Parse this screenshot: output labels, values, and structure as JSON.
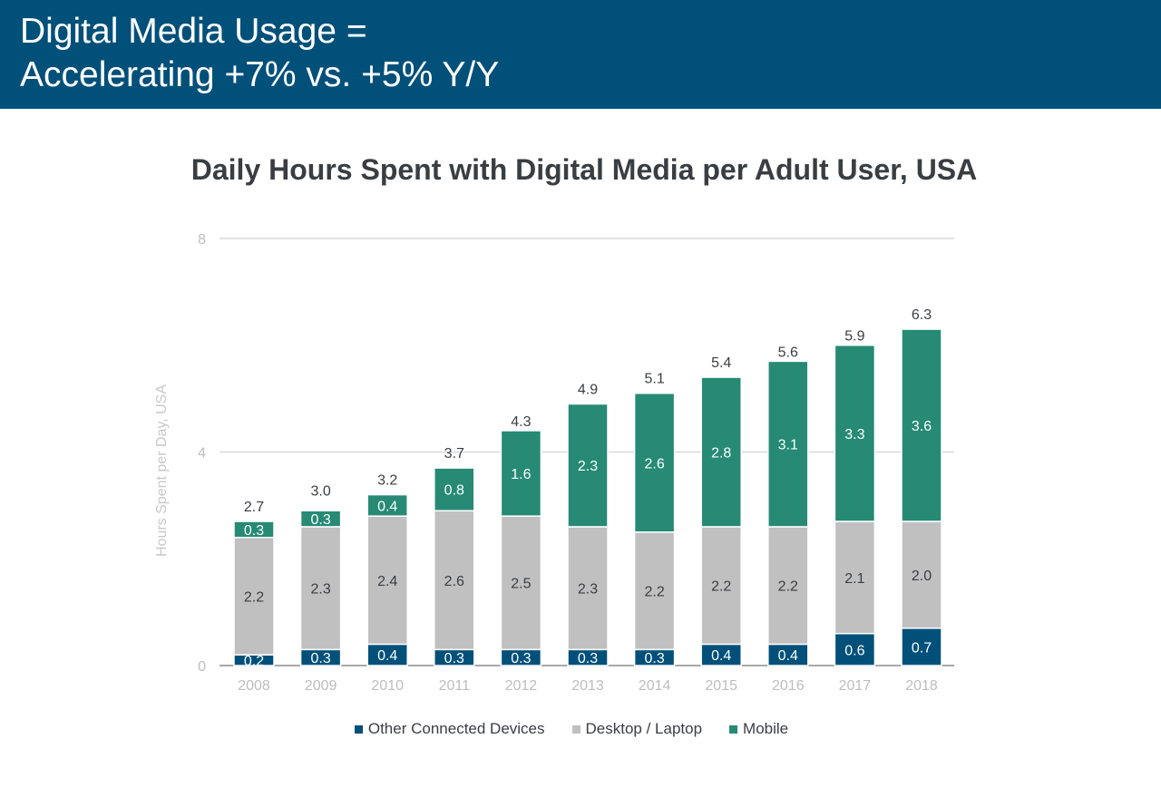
{
  "header": {
    "line1": "Digital Media Usage =",
    "line2": "Accelerating +7% vs. +5% Y/Y",
    "background": "#01507a"
  },
  "chart_data": {
    "type": "bar",
    "stacked": true,
    "title": "Daily Hours Spent with Digital Media per Adult User, USA",
    "xlabel": "",
    "ylabel": "Hours Spent per Day, USA",
    "ylim": [
      0,
      8
    ],
    "yticks": [
      "0",
      "4",
      "8"
    ],
    "grid": true,
    "legend_position": "bottom",
    "categories": [
      "2008",
      "2009",
      "2010",
      "2011",
      "2012",
      "2013",
      "2014",
      "2015",
      "2016",
      "2017",
      "2018"
    ],
    "series": [
      {
        "name": "Other Connected Devices",
        "color": "#01507a",
        "values": [
          0.2,
          0.3,
          0.4,
          0.3,
          0.3,
          0.3,
          0.3,
          0.4,
          0.4,
          0.6,
          0.7
        ],
        "labels": [
          "0.2",
          "0.3",
          "0.4",
          "0.3",
          "0.3",
          "0.3",
          "0.3",
          "0.4",
          "0.4",
          "0.6",
          "0.7"
        ]
      },
      {
        "name": "Desktop / Laptop",
        "color": "#c0c0c0",
        "values": [
          2.2,
          2.3,
          2.4,
          2.6,
          2.5,
          2.3,
          2.2,
          2.2,
          2.2,
          2.1,
          2.0
        ],
        "labels": [
          "2.2",
          "2.3",
          "2.4",
          "2.6",
          "2.5",
          "2.3",
          "2.2",
          "2.2",
          "2.2",
          "2.1",
          "2.0"
        ]
      },
      {
        "name": "Mobile",
        "color": "#268a75",
        "values": [
          0.3,
          0.3,
          0.4,
          0.8,
          1.6,
          2.3,
          2.6,
          2.8,
          3.1,
          3.3,
          3.6
        ],
        "labels": [
          "0.3",
          "0.3",
          "0.4",
          "0.8",
          "1.6",
          "2.3",
          "2.6",
          "2.8",
          "3.1",
          "3.3",
          "3.6"
        ]
      }
    ],
    "totals": [
      2.7,
      3.0,
      3.2,
      3.7,
      4.3,
      4.9,
      5.1,
      5.4,
      5.6,
      5.9,
      6.3
    ],
    "total_labels": [
      "2.7",
      "3.0",
      "3.2",
      "3.7",
      "4.3",
      "4.9",
      "5.1",
      "5.4",
      "5.6",
      "5.9",
      "6.3"
    ]
  }
}
